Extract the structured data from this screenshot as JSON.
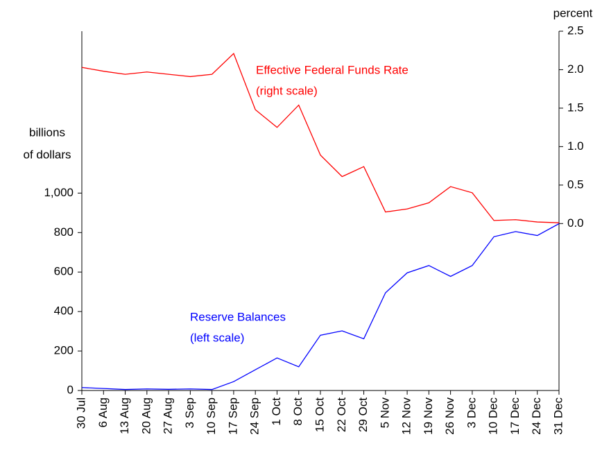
{
  "chart_data": {
    "type": "line",
    "ylabel": [
      "billions",
      "of dollars"
    ],
    "y2label": "percent",
    "categories": [
      "30 Jul",
      "6 Aug",
      "13 Aug",
      "20 Aug",
      "27 Aug",
      "3 Sep",
      "10 Sep",
      "17 Sep",
      "24 Sep",
      "1 Oct",
      "8 Oct",
      "15 Oct",
      "22 Oct",
      "29 Oct",
      "5 Nov",
      "12 Nov",
      "19 Nov",
      "26 Nov",
      "3 Dec",
      "10 Dec",
      "17 Dec",
      "24 Dec",
      "31 Dec"
    ],
    "series": [
      {
        "name": "Effective Federal Funds Rate",
        "scale_note": "(right scale)",
        "color": "#ff0000",
        "axis": "y2",
        "values": [
          2.03,
          1.98,
          1.94,
          1.97,
          1.94,
          1.91,
          1.94,
          2.21,
          1.48,
          1.25,
          1.54,
          0.89,
          0.61,
          0.74,
          0.15,
          0.19,
          0.27,
          0.48,
          0.4,
          0.04,
          0.05,
          0.02,
          0.01
        ]
      },
      {
        "name": "Reserve Balances",
        "scale_note": "(left scale)",
        "color": "#0000ff",
        "values": [
          15,
          10,
          5,
          8,
          6,
          8,
          5,
          45,
          105,
          165,
          120,
          280,
          302,
          262,
          495,
          596,
          633,
          578,
          633,
          779,
          805,
          785,
          845
        ]
      }
    ],
    "ylim": [
      0,
      1820
    ],
    "yticks": [
      0,
      200,
      400,
      600,
      800,
      {
        "value": 1000,
        "label": "1,000"
      }
    ],
    "y2lim": [
      -2.17,
      2.5
    ],
    "y2ticks": [
      {
        "value": 0,
        "label": "0.0"
      },
      0.5,
      {
        "value": 1,
        "label": "1.0"
      },
      1.5,
      {
        "value": 2,
        "label": "2.0"
      },
      2.5
    ]
  }
}
